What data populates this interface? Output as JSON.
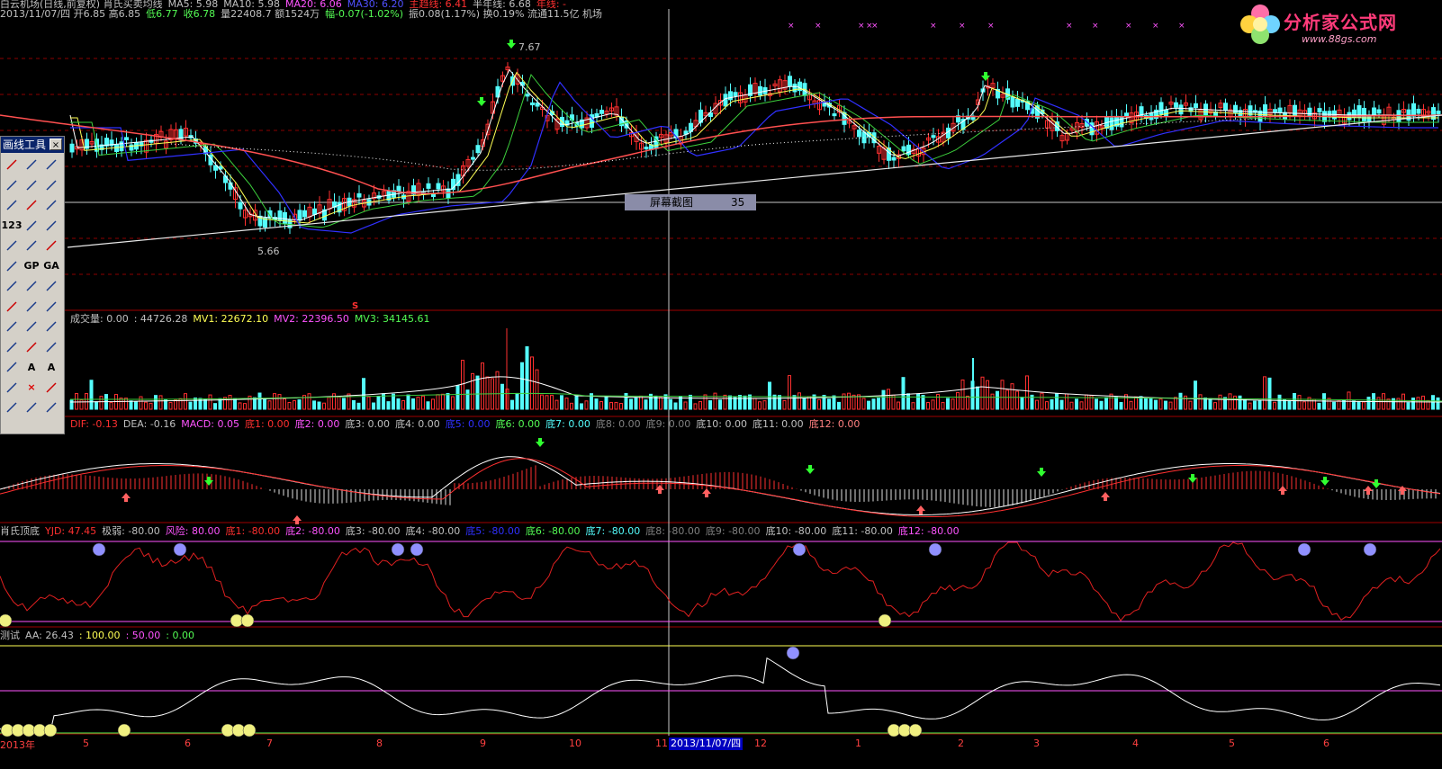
{
  "colors": {
    "bg": "#000000",
    "up": "#ff3030",
    "down": "#54fcfc",
    "grid": "#8b0000",
    "ma5": "#ffffff",
    "ma10": "#ffff54",
    "ma20": "#ff54ff",
    "ma60": "#3030ff",
    "ma120": "#ff5050"
  },
  "price_header": {
    "line1": [
      {
        "text": "白云机场(日线,前复权) 肖氏买卖均线",
        "color": "#c0c0c0"
      },
      {
        "text": "MA5: 5.98",
        "color": "#c0c0c0"
      },
      {
        "text": "MA10: 5.98",
        "color": "#c0c0c0"
      },
      {
        "text": "MA20: 6.06",
        "color": "#ff54ff"
      },
      {
        "text": "MA30: 6.20",
        "color": "#5050ff"
      },
      {
        "text": "主趋线: 6.41",
        "color": "#ff3030"
      },
      {
        "text": "半年线: 6.68",
        "color": "#c0c0c0"
      },
      {
        "text": "年线: -",
        "color": "#ff3030"
      }
    ],
    "line2": [
      {
        "text": "2013/11/07/四 开6.85 高6.85",
        "color": "#c0c0c0"
      },
      {
        "text": "低6.77",
        "color": "#54fc54"
      },
      {
        "text": "收6.78",
        "color": "#54fc54"
      },
      {
        "text": "量22408.7 额1524万",
        "color": "#c0c0c0"
      },
      {
        "text": "幅-0.07(-1.02%)",
        "color": "#54fc54"
      },
      {
        "text": "振0.08(1.17%) 换0.19% 流通11.5亿 机场",
        "color": "#c0c0c0"
      }
    ]
  },
  "logo": {
    "title": "分析家公式网",
    "url": "www.88gs.com"
  },
  "price_annotations": {
    "high": "7.67",
    "low": "5.66"
  },
  "tooltip": {
    "label": "屏幕截图",
    "count": "35"
  },
  "volume_header": [
    {
      "text": "成交量: 0.00",
      "color": "#c0c0c0"
    },
    {
      "text": ": 44726.28",
      "color": "#c0c0c0"
    },
    {
      "text": "MV1: 22672.10",
      "color": "#ffff54"
    },
    {
      "text": "MV2: 22396.50",
      "color": "#ff54ff"
    },
    {
      "text": "MV3: 34145.61",
      "color": "#54fc54"
    }
  ],
  "macd_header": [
    {
      "text": "DIF: -0.13",
      "color": "#ff3030"
    },
    {
      "text": "DEA: -0.16",
      "color": "#c0c0c0"
    },
    {
      "text": "MACD: 0.05",
      "color": "#ff54ff"
    },
    {
      "text": "底1: 0.00",
      "color": "#ff3030"
    },
    {
      "text": "底2: 0.00",
      "color": "#ff54ff"
    },
    {
      "text": "底3: 0.00",
      "color": "#c0c0c0"
    },
    {
      "text": "底4: 0.00",
      "color": "#c0c0c0"
    },
    {
      "text": "底5: 0.00",
      "color": "#3030ff"
    },
    {
      "text": "底6: 0.00",
      "color": "#54fc54"
    },
    {
      "text": "底7: 0.00",
      "color": "#54fcfc"
    },
    {
      "text": "底8: 0.00",
      "color": "#808080"
    },
    {
      "text": "底9: 0.00",
      "color": "#808080"
    },
    {
      "text": "底10: 0.00",
      "color": "#c0c0c0"
    },
    {
      "text": "底11: 0.00",
      "color": "#c0c0c0"
    },
    {
      "text": "底12: 0.00",
      "color": "#ff8080"
    }
  ],
  "yjd_header": [
    {
      "text": "肖氏顶底",
      "color": "#c0c0c0"
    },
    {
      "text": "YJD: 47.45",
      "color": "#ff3030"
    },
    {
      "text": "极弱: -80.00",
      "color": "#c0c0c0"
    },
    {
      "text": "风险: 80.00",
      "color": "#ff54ff"
    },
    {
      "text": "底1: -80.00",
      "color": "#ff3030"
    },
    {
      "text": "底2: -80.00",
      "color": "#ff54ff"
    },
    {
      "text": "底3: -80.00",
      "color": "#c0c0c0"
    },
    {
      "text": "底4: -80.00",
      "color": "#c0c0c0"
    },
    {
      "text": "底5: -80.00",
      "color": "#3030ff"
    },
    {
      "text": "底6: -80.00",
      "color": "#54fc54"
    },
    {
      "text": "底7: -80.00",
      "color": "#54fcfc"
    },
    {
      "text": "底8: -80.00",
      "color": "#808080"
    },
    {
      "text": "底9: -80.00",
      "color": "#808080"
    },
    {
      "text": "底10: -80.00",
      "color": "#c0c0c0"
    },
    {
      "text": "底11: -80.00",
      "color": "#c0c0c0"
    },
    {
      "text": "底12: -80.00",
      "color": "#ff54ff"
    }
  ],
  "aa_header": [
    {
      "text": "测试",
      "color": "#c0c0c0"
    },
    {
      "text": "AA: 26.43",
      "color": "#c0c0c0"
    },
    {
      "text": ": 100.00",
      "color": "#ffff54"
    },
    {
      "text": ": 50.00",
      "color": "#ff54ff"
    },
    {
      "text": ": 0.00",
      "color": "#54fc54"
    }
  ],
  "toolbox": {
    "title": "画线工具",
    "close": "×",
    "icons": [
      "cursor-icon",
      "line-icon",
      "ray-icon",
      "arrow-line-icon",
      "segment-icon",
      "pin-line-icon",
      "hline-icon",
      "fan-line-icon",
      "vline-icon",
      "ruler-icon",
      "parallel-icon",
      "parallel2-icon",
      "channel-icon",
      "arc-icon",
      "circle-icon",
      "cycle-icon",
      "golden-ratio-icon",
      "golden-angle-icon",
      "gann-icon",
      "percent-icon",
      "speed-line-icon",
      "fib-vertical-icon",
      "time-cycle-icon",
      "regression-icon",
      "fan-icon",
      "pitchfork-icon",
      "triangle-icon",
      "rectangle-icon",
      "up-arrow-icon",
      "down-arrow-icon",
      "pen-icon",
      "text-icon",
      "label-icon",
      "eraser-icon",
      "delete-icon",
      "highlight-icon",
      "list-icon",
      "ruler-horizontal-icon",
      "screen-icon"
    ],
    "labels": [
      "",
      "",
      "",
      "",
      "",
      "",
      "",
      "",
      "",
      "123",
      "",
      "",
      "",
      "",
      "",
      "",
      "GP",
      "GA",
      "",
      "",
      "",
      "",
      "",
      "",
      "",
      "",
      "",
      "",
      "",
      "",
      "",
      "A",
      "A",
      "",
      "×",
      "",
      "",
      "",
      ""
    ]
  },
  "date_axis": {
    "year": "2013年",
    "months": [
      "5",
      "6",
      "7",
      "8",
      "9",
      "10",
      "11",
      "12",
      "1",
      "2",
      "3",
      "4",
      "5",
      "6"
    ],
    "cursor": "2013/11/07/四"
  },
  "signals": {
    "sell_mark": "×",
    "buy_mark": "S"
  }
}
